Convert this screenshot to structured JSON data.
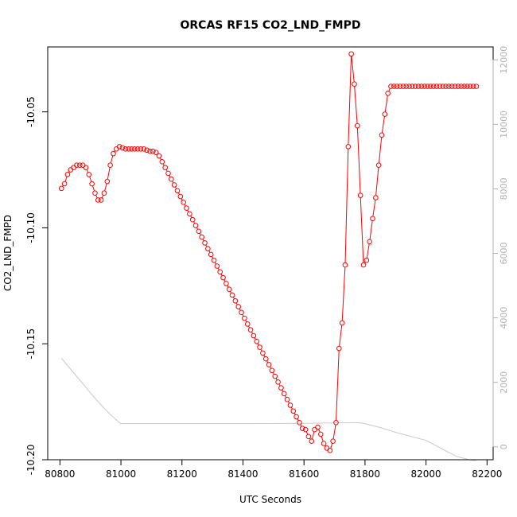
{
  "chart_data": {
    "type": "line",
    "title": "ORCAS RF15 CO2_LND_FMPD",
    "xlabel": "UTC Seconds",
    "ylabel": "CO2_LND_FMPD",
    "xlim": [
      80760,
      82220
    ],
    "ylim": [
      -10.2,
      -10.022
    ],
    "y2lim": [
      -400,
      12400
    ],
    "x_ticks": [
      "80800",
      "81000",
      "81200",
      "81400",
      "81600",
      "81800",
      "82000",
      "82200"
    ],
    "y_ticks": [
      "-10.20",
      "-10.15",
      "-10.10",
      "-10.05"
    ],
    "y2_ticks": [
      "0",
      "2000",
      "4000",
      "6000",
      "8000",
      "10000",
      "12000"
    ],
    "colors": {
      "series": "#ff0000",
      "secondary": "#c8c8c8",
      "axes": "#000000",
      "secondary_axis": "#b0b0b0"
    },
    "series": [
      {
        "marker": "open-circle",
        "line": "solid",
        "x": [
          80805,
          80815,
          80825,
          80835,
          80845,
          80855,
          80865,
          80875,
          80885,
          80895,
          80905,
          80915,
          80925,
          80935,
          80945,
          80955,
          80965,
          80975,
          80985,
          80995,
          81005,
          81015,
          81025,
          81035,
          81045,
          81055,
          81065,
          81075,
          81085,
          81095,
          81105,
          81115,
          81125,
          81135,
          81145,
          81155,
          81165,
          81175,
          81185,
          81195,
          81205,
          81215,
          81225,
          81235,
          81245,
          81255,
          81265,
          81275,
          81285,
          81295,
          81305,
          81315,
          81325,
          81335,
          81345,
          81355,
          81365,
          81375,
          81385,
          81395,
          81405,
          81415,
          81425,
          81435,
          81445,
          81455,
          81465,
          81475,
          81485,
          81495,
          81505,
          81515,
          81525,
          81535,
          81545,
          81555,
          81565,
          81575,
          81585,
          81595,
          81605,
          81615,
          81625,
          81635,
          81645,
          81655,
          81665,
          81675,
          81685,
          81695,
          81705,
          81715,
          81725,
          81735,
          81745,
          81755,
          81765,
          81775,
          81785,
          81795,
          81805,
          81815,
          81825,
          81835,
          81845,
          81855,
          81865,
          81875,
          81885,
          81895,
          81905,
          81915,
          81925,
          81935,
          81945,
          81955,
          81965,
          81975,
          81985,
          81995,
          82005,
          82015,
          82025,
          82035,
          82045,
          82055,
          82065,
          82075,
          82085,
          82095,
          82105,
          82115,
          82125,
          82135,
          82145,
          82155,
          82165
        ],
        "y": [
          -10.083,
          -10.081,
          -10.077,
          -10.075,
          -10.074,
          -10.073,
          -10.073,
          -10.073,
          -10.074,
          -10.077,
          -10.081,
          -10.085,
          -10.088,
          -10.088,
          -10.085,
          -10.08,
          -10.073,
          -10.068,
          -10.066,
          -10.065,
          -10.0655,
          -10.066,
          -10.066,
          -10.066,
          -10.066,
          -10.066,
          -10.066,
          -10.066,
          -10.0665,
          -10.067,
          -10.067,
          -10.0675,
          -10.069,
          -10.0715,
          -10.074,
          -10.0765,
          -10.079,
          -10.0815,
          -10.084,
          -10.0865,
          -10.089,
          -10.0915,
          -10.094,
          -10.0965,
          -10.099,
          -10.1015,
          -10.104,
          -10.1065,
          -10.109,
          -10.1115,
          -10.114,
          -10.1165,
          -10.119,
          -10.1215,
          -10.124,
          -10.1265,
          -10.129,
          -10.1315,
          -10.134,
          -10.1365,
          -10.139,
          -10.1415,
          -10.144,
          -10.1465,
          -10.149,
          -10.1515,
          -10.154,
          -10.1565,
          -10.159,
          -10.1615,
          -10.164,
          -10.1665,
          -10.169,
          -10.1715,
          -10.174,
          -10.1765,
          -10.179,
          -10.1815,
          -10.184,
          -10.1865,
          -10.187,
          -10.19,
          -10.192,
          -10.187,
          -10.186,
          -10.189,
          -10.193,
          -10.195,
          -10.196,
          -10.192,
          -10.184,
          -10.152,
          -10.141,
          -10.116,
          -10.065,
          -10.025,
          -10.038,
          -10.056,
          -10.086,
          -10.116,
          -10.114,
          -10.106,
          -10.096,
          -10.087,
          -10.073,
          -10.06,
          -10.051,
          -10.042,
          -10.039,
          -10.039,
          -10.039,
          -10.039,
          -10.039,
          -10.039,
          -10.039,
          -10.039,
          -10.039,
          -10.039,
          -10.039,
          -10.039,
          -10.039,
          -10.039,
          -10.039,
          -10.039,
          -10.039,
          -10.039,
          -10.039,
          -10.039,
          -10.039,
          -10.039,
          -10.039,
          -10.039,
          -10.039,
          -10.039,
          -10.039,
          -10.039,
          -10.039
        ]
      },
      {
        "marker": "none",
        "line": "solid",
        "axis": "right",
        "x": [
          80805,
          80840,
          80880,
          80920,
          80960,
          80995,
          81000,
          81200,
          81400,
          81600,
          81700,
          81780,
          81800,
          81850,
          81900,
          82000,
          82050,
          82100,
          82150,
          82165
        ],
        "y": [
          2750,
          2350,
          1900,
          1450,
          1050,
          750,
          720,
          720,
          720,
          730,
          740,
          750,
          720,
          600,
          450,
          200,
          -50,
          -300,
          -420,
          -420
        ]
      }
    ]
  }
}
